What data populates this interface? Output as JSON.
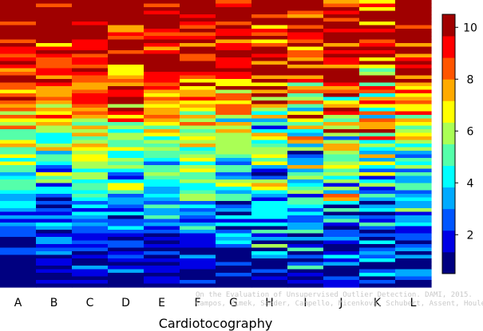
{
  "chart_data": {
    "type": "heatmap",
    "title": "",
    "xlabel": "Cardiotocography",
    "ylabel": "",
    "columns": [
      "A",
      "B",
      "C",
      "D",
      "E",
      "F",
      "G",
      "H",
      "I",
      "J",
      "K",
      "L"
    ],
    "colorbar": {
      "ticks": [
        2,
        4,
        6,
        8,
        10
      ],
      "range": [
        0.5,
        10.5
      ],
      "colors": [
        "#000080",
        "#0000e5",
        "#0055ff",
        "#00aaff",
        "#00ffff",
        "#55ffaa",
        "#aaff55",
        "#ffff00",
        "#ffaa00",
        "#ff5500",
        "#ff0000",
        "#a00000"
      ]
    },
    "row_count": 80,
    "sort_order": "descending",
    "profile": [
      {
        "until": 0.02,
        "value": 10.5
      },
      {
        "until": 0.25,
        "value": 9.0
      },
      {
        "until": 0.45,
        "value": 6.5
      },
      {
        "until": 0.65,
        "value": 4.2
      },
      {
        "until": 0.8,
        "value": 2.5
      },
      {
        "until": 1.0,
        "value": 0.8
      }
    ],
    "column_spread": [
      1.3,
      1.5,
      1.2,
      1.8,
      1.2,
      1.3,
      1.8,
      2.6,
      2.4,
      2.0,
      2.1,
      1.6
    ]
  },
  "credit": {
    "line1": "On the Evaluation of Unsupervised Outlier Detection. DAMI, 2015.",
    "line2": "Campos, Zimek, Sander, Campello, Micenková, Schubert, Assent, Houle"
  }
}
